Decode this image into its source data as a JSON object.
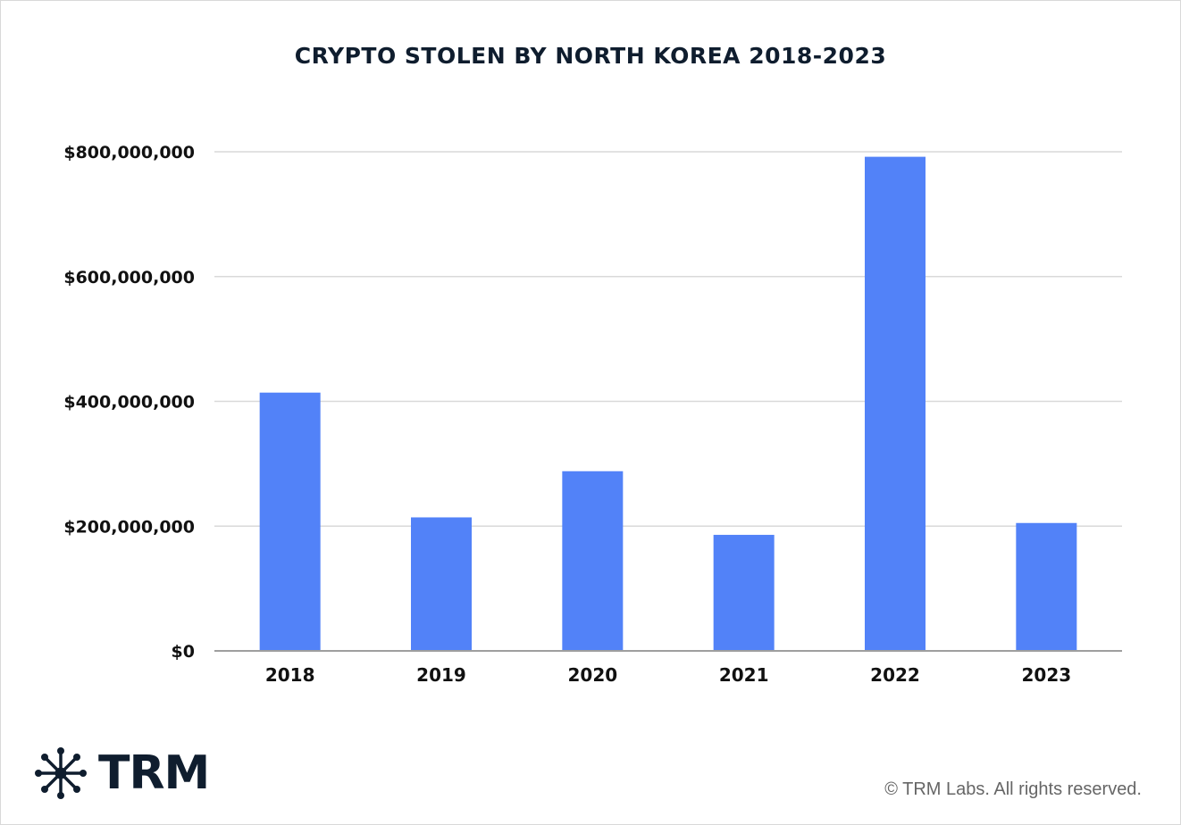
{
  "chart_data": {
    "type": "bar",
    "title": "CRYPTO STOLEN BY NORTH KOREA 2018-2023",
    "categories": [
      "2018",
      "2019",
      "2020",
      "2021",
      "2022",
      "2023"
    ],
    "values": [
      414000000,
      214000000,
      288000000,
      186000000,
      792000000,
      205000000
    ],
    "ylim": [
      0,
      800000000
    ],
    "yticks": [
      0,
      200000000,
      400000000,
      600000000,
      800000000
    ],
    "ytick_labels": [
      "$0",
      "$200,000,000",
      "$400,000,000",
      "$600,000,000",
      "$800,000,000"
    ],
    "bar_color": "#5282f8",
    "grid": true,
    "grid_color": "#d9d9d9",
    "axis_color": "#9e9e9e"
  },
  "branding": {
    "logo_text": "TRM",
    "logo_icon": "network-node-icon",
    "copyright": "© TRM Labs. All rights reserved."
  }
}
